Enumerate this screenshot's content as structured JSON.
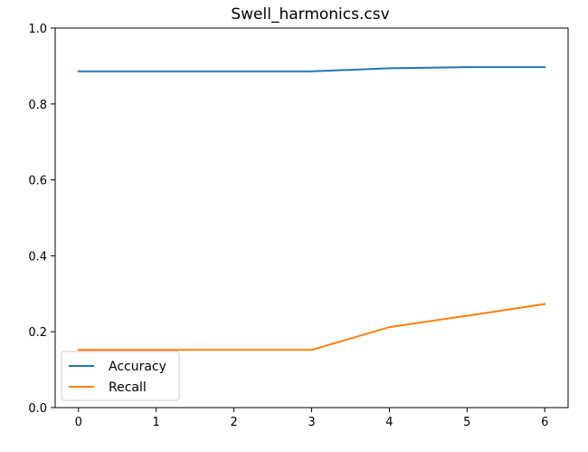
{
  "chart_data": {
    "type": "line",
    "title": "Swell_harmonics.csv",
    "xlabel": "",
    "ylabel": "",
    "x": [
      0,
      1,
      2,
      3,
      4,
      5,
      6
    ],
    "xlim": [
      -0.3,
      6.3
    ],
    "ylim": [
      0.0,
      1.0
    ],
    "xticks": [
      "0",
      "1",
      "2",
      "3",
      "4",
      "5",
      "6"
    ],
    "yticks": [
      "0.0",
      "0.2",
      "0.4",
      "0.6",
      "0.8",
      "1.0"
    ],
    "grid": false,
    "legend_position": "lower-left",
    "series": [
      {
        "name": "Accuracy",
        "color": "#1f77b4",
        "values": [
          0.886,
          0.886,
          0.886,
          0.886,
          0.894,
          0.897,
          0.897
        ]
      },
      {
        "name": "Recall",
        "color": "#ff7f0e",
        "values": [
          0.152,
          0.152,
          0.152,
          0.152,
          0.212,
          0.242,
          0.273
        ]
      }
    ]
  }
}
